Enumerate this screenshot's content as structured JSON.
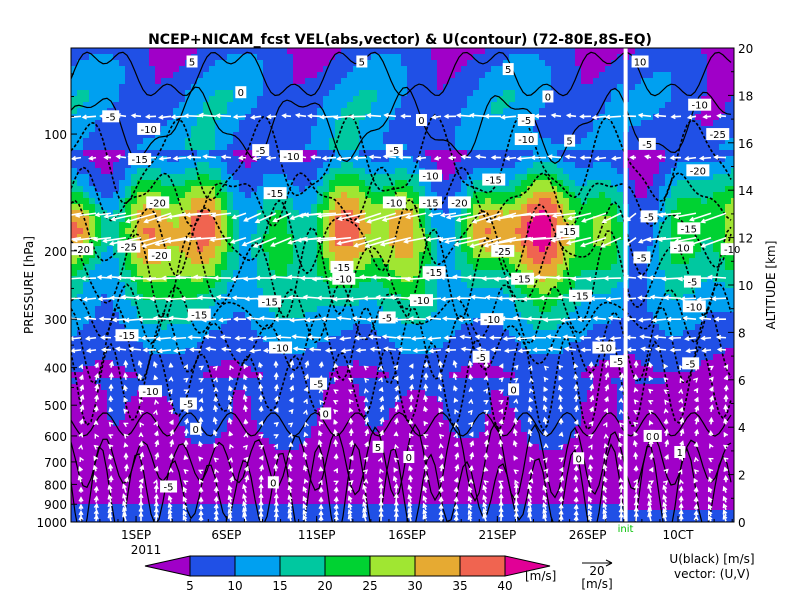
{
  "chart_data": {
    "type": "heatmap",
    "title": "NCEP+NICAM_fcst VEL(abs,vector) & U(contour)  (72-80E,8S-EQ)",
    "y_left_label": "PRESSURE [hPa]",
    "y_right_label": "ALTITUDE [km]",
    "pressure_ticks": [
      "100",
      "200",
      "300",
      "400",
      "500",
      "600",
      "700",
      "800",
      "900",
      "1000"
    ],
    "pressure_values": [
      100,
      200,
      300,
      400,
      500,
      600,
      700,
      800,
      900,
      1000
    ],
    "pressure_range": [
      60,
      1000
    ],
    "altitude_ticks": [
      "0",
      "2",
      "4",
      "6",
      "8",
      "10",
      "12",
      "14",
      "16",
      "18",
      "20"
    ],
    "altitude_range": [
      0,
      20
    ],
    "time_ticks": [
      "1SEP",
      "6SEP",
      "11SEP",
      "16SEP",
      "21SEP",
      "26SEP",
      "10CT"
    ],
    "time_tick_days": [
      0,
      5,
      10,
      15,
      20,
      25,
      30
    ],
    "time_range_days": [
      -3.6,
      33.1
    ],
    "year_label": "2011",
    "init_label": "init",
    "init_day": 27.1,
    "colorbar": {
      "levels": [
        "5",
        "10",
        "15",
        "20",
        "25",
        "30",
        "35",
        "40"
      ],
      "colors": [
        "#a000c8",
        "#2050e6",
        "#00a0f0",
        "#00c8a0",
        "#00d232",
        "#a0e632",
        "#e6aa32",
        "#f06450",
        "#e10096"
      ],
      "unit": "[m/s]"
    },
    "vector_key": {
      "value": "20",
      "unit": "[m/s]"
    },
    "contour_legend": "U(black) [m/s]",
    "vector_legend": "vector: (U,V)",
    "contour_labels": [
      {
        "text": "5",
        "day": 3.1,
        "p": 65
      },
      {
        "text": "5",
        "day": 12.5,
        "p": 65
      },
      {
        "text": "5",
        "day": 20.6,
        "p": 68
      },
      {
        "text": "0",
        "day": 5.8,
        "p": 78
      },
      {
        "text": "0",
        "day": 15.8,
        "p": 92
      },
      {
        "text": "0",
        "day": 22.8,
        "p": 80
      },
      {
        "text": "-5",
        "day": -1.4,
        "p": 90
      },
      {
        "text": "-5",
        "day": 21.6,
        "p": 92
      },
      {
        "text": "-10",
        "day": 0.7,
        "p": 97
      },
      {
        "text": "-10",
        "day": 21.6,
        "p": 103
      },
      {
        "text": "5",
        "day": 24.0,
        "p": 104
      },
      {
        "text": "-5",
        "day": 6.9,
        "p": 110
      },
      {
        "text": "-10",
        "day": 8.6,
        "p": 114
      },
      {
        "text": "-5",
        "day": 14.3,
        "p": 110
      },
      {
        "text": "-15",
        "day": 0.2,
        "p": 116
      },
      {
        "text": "-10",
        "day": 16.3,
        "p": 128
      },
      {
        "text": "-15",
        "day": 19.8,
        "p": 131
      },
      {
        "text": "-15",
        "day": 7.7,
        "p": 142
      },
      {
        "text": "-10",
        "day": 14.3,
        "p": 150
      },
      {
        "text": "-15",
        "day": 16.3,
        "p": 150
      },
      {
        "text": "-20",
        "day": 17.9,
        "p": 150
      },
      {
        "text": "-20",
        "day": 1.2,
        "p": 150
      },
      {
        "text": "-15",
        "day": 23.9,
        "p": 178
      },
      {
        "text": "-25",
        "day": -0.4,
        "p": 195
      },
      {
        "text": "-20",
        "day": -3.0,
        "p": 198
      },
      {
        "text": "-20",
        "day": 1.3,
        "p": 205
      },
      {
        "text": "-25",
        "day": 20.3,
        "p": 200
      },
      {
        "text": "-15",
        "day": 11.4,
        "p": 220
      },
      {
        "text": "-10",
        "day": 11.5,
        "p": 236
      },
      {
        "text": "-15",
        "day": 16.5,
        "p": 227
      },
      {
        "text": "-15",
        "day": 21.4,
        "p": 236
      },
      {
        "text": "-15",
        "day": 24.6,
        "p": 261
      },
      {
        "text": "-15",
        "day": 7.4,
        "p": 270
      },
      {
        "text": "-10",
        "day": 15.8,
        "p": 268
      },
      {
        "text": "-15",
        "day": 3.5,
        "p": 292
      },
      {
        "text": "-10",
        "day": 19.7,
        "p": 300
      },
      {
        "text": "-5",
        "day": 13.9,
        "p": 297
      },
      {
        "text": "-15",
        "day": -0.5,
        "p": 330
      },
      {
        "text": "-10",
        "day": 8.0,
        "p": 355
      },
      {
        "text": "-10",
        "day": 25.9,
        "p": 355
      },
      {
        "text": "-5",
        "day": 19.1,
        "p": 375
      },
      {
        "text": "-5",
        "day": 26.7,
        "p": 385
      },
      {
        "text": "-5",
        "day": 10.1,
        "p": 440
      },
      {
        "text": "-10",
        "day": 0.8,
        "p": 460
      },
      {
        "text": "-5",
        "day": 2.9,
        "p": 495
      },
      {
        "text": "0",
        "day": 20.9,
        "p": 455
      },
      {
        "text": "0",
        "day": 10.5,
        "p": 525
      },
      {
        "text": "0",
        "day": 3.3,
        "p": 575
      },
      {
        "text": "0",
        "day": 28.4,
        "p": 600
      },
      {
        "text": "5",
        "day": 13.4,
        "p": 640
      },
      {
        "text": "0",
        "day": 15.1,
        "p": 680
      },
      {
        "text": "0",
        "day": 24.5,
        "p": 685
      },
      {
        "text": "0",
        "day": 7.6,
        "p": 790
      },
      {
        "text": "-5",
        "day": 1.8,
        "p": 810
      },
      {
        "text": "10",
        "day": 27.9,
        "p": 65
      },
      {
        "text": "-10",
        "day": 31.2,
        "p": 84
      },
      {
        "text": "-25",
        "day": 32.2,
        "p": 100
      },
      {
        "text": "-5",
        "day": 28.3,
        "p": 106
      },
      {
        "text": "-20",
        "day": 31.1,
        "p": 124
      },
      {
        "text": "-5",
        "day": 28.4,
        "p": 163
      },
      {
        "text": "-15",
        "day": 30.6,
        "p": 175
      },
      {
        "text": "-10",
        "day": 30.2,
        "p": 196
      },
      {
        "text": "-10",
        "day": 33.0,
        "p": 198
      },
      {
        "text": "-5",
        "day": 28.0,
        "p": 208
      },
      {
        "text": "-5",
        "day": 30.8,
        "p": 240
      },
      {
        "text": "-10",
        "day": 30.9,
        "p": 278
      },
      {
        "text": "-5",
        "day": 30.7,
        "p": 390
      },
      {
        "text": "0",
        "day": 28.8,
        "p": 600
      },
      {
        "text": "1",
        "day": 30.1,
        "p": 660
      }
    ]
  }
}
